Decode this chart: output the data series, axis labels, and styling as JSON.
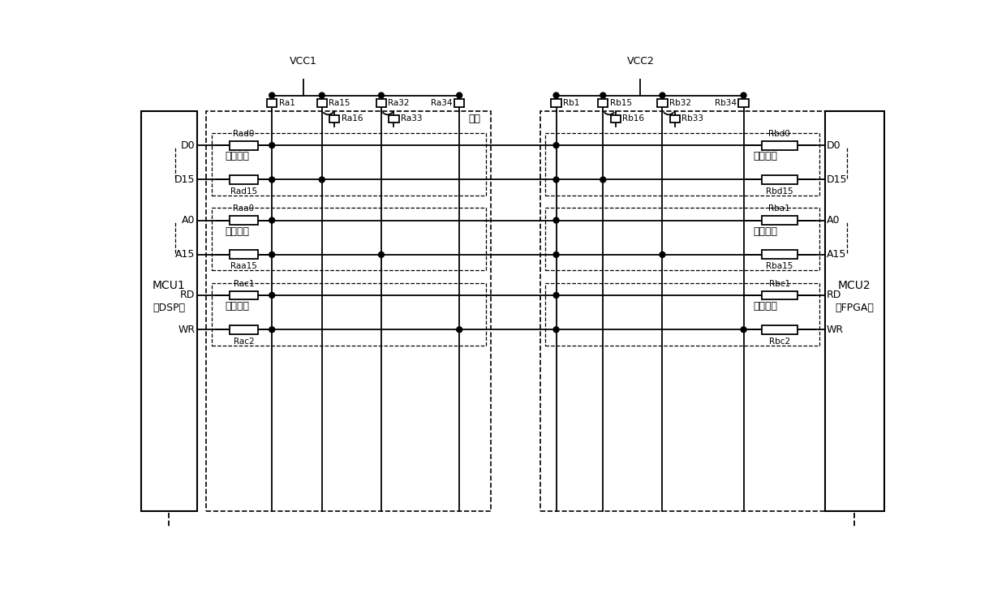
{
  "fig_width": 12.4,
  "fig_height": 7.42,
  "bg_color": "#ffffff",
  "line_color": "#000000",
  "vcc1_label": "VCC1",
  "vcc2_label": "VCC2",
  "mcu1_label": "MCU1",
  "mcu1_sub": "（DSP）",
  "mcu2_label": "MCU2",
  "mcu2_sub": "（FPGA）",
  "pai_zhen_label": "排针",
  "bus_label_data": "数据总线",
  "bus_label_addr": "地址总线",
  "bus_label_ctrl": "控制总线",
  "left_pins": [
    "D0",
    "D15",
    "A0",
    "A15",
    "RD",
    "WR"
  ],
  "right_pins": [
    "D0",
    "D15",
    "A0",
    "A15",
    "RD",
    "WR"
  ]
}
